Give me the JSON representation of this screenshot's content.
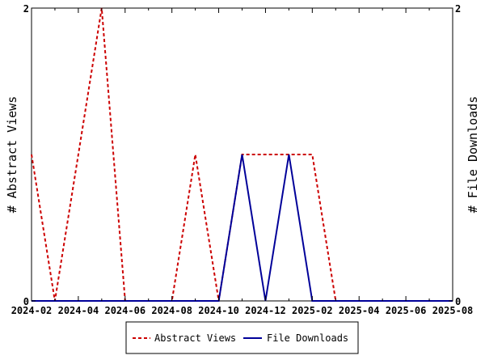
{
  "chart_data": {
    "type": "line",
    "title": "",
    "xlabel": "",
    "ylabel_left": "# Abstract Views",
    "ylabel_right": "# File Downloads",
    "y_left_ticks": [
      "0",
      "2"
    ],
    "y_right_ticks": [
      "0",
      "2"
    ],
    "ylim": [
      0,
      2
    ],
    "x_tick_labels": [
      "2024-02",
      "2024-04",
      "2024-06",
      "2024-08",
      "2024-10",
      "2024-12",
      "2025-02",
      "2025-04",
      "2025-06",
      "2025-08"
    ],
    "x": [
      "2024-02",
      "2024-03",
      "2024-04",
      "2024-05",
      "2024-06",
      "2024-07",
      "2024-08",
      "2024-09",
      "2024-10",
      "2024-11",
      "2024-12",
      "2025-01",
      "2025-02",
      "2025-03",
      "2025-04",
      "2025-05",
      "2025-06",
      "2025-07",
      "2025-08"
    ],
    "series": [
      {
        "name": "Abstract Views",
        "color": "#cc0000",
        "dash": "dashed",
        "axis": "left",
        "values": [
          1,
          0,
          1,
          2,
          0,
          0,
          0,
          1,
          0,
          1,
          1,
          1,
          1,
          0,
          0,
          0,
          0,
          0,
          0
        ]
      },
      {
        "name": "File Downloads",
        "color": "#000099",
        "dash": "solid",
        "axis": "right",
        "values": [
          0,
          0,
          0,
          0,
          0,
          0,
          0,
          0,
          0,
          1,
          0,
          1,
          0,
          0,
          0,
          0,
          0,
          0,
          0
        ]
      }
    ],
    "grid": false,
    "legend_position": "bottom"
  }
}
